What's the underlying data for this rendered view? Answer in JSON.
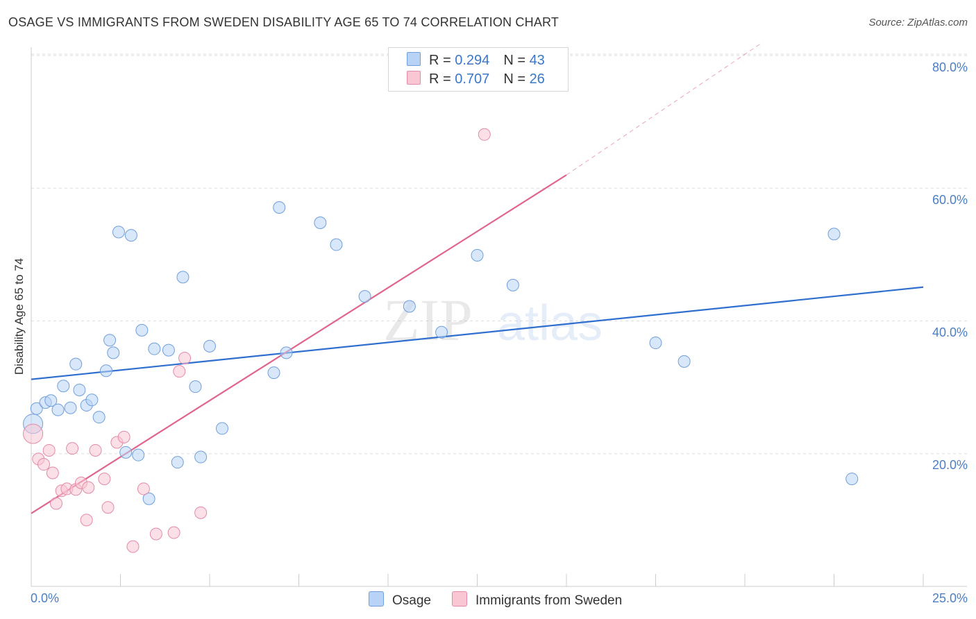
{
  "title": "OSAGE VS IMMIGRANTS FROM SWEDEN DISABILITY AGE 65 TO 74 CORRELATION CHART",
  "source": "Source: ZipAtlas.com",
  "watermark": {
    "zip": "ZIP",
    "atlas": "atlas"
  },
  "legend": {
    "r_label": "R = ",
    "n_label": "N = ",
    "rows": [
      {
        "r": "0.294",
        "n": "43",
        "color": "#b8d3f5",
        "border": "#6f9fdc"
      },
      {
        "r": "0.707",
        "n": "26",
        "color": "#f9c6d4",
        "border": "#e48aa6"
      }
    ]
  },
  "colors": {
    "blue_line": "#2e6fcf",
    "pink_line": "#e0648e",
    "grid": "#dddddd",
    "axis_text": "#4a7fc4"
  },
  "chart_data": {
    "type": "scatter",
    "title": "OSAGE VS IMMIGRANTS FROM SWEDEN DISABILITY AGE 65 TO 74 CORRELATION CHART",
    "xlabel": "",
    "ylabel": "Disability Age 65 to 74",
    "xlim": [
      0,
      25
    ],
    "ylim": [
      0,
      80
    ],
    "x_tick_labels": [
      "0.0%",
      "25.0%"
    ],
    "y_ticks": [
      20,
      40,
      60,
      80
    ],
    "y_tick_labels": [
      "20.0%",
      "40.0%",
      "60.0%",
      "80.0%"
    ],
    "grid": true,
    "legend_position": "top-center",
    "series": [
      {
        "name": "Osage",
        "color": "#b8d3f5",
        "points": [
          [
            0.05,
            24.5
          ],
          [
            0.15,
            26.8
          ],
          [
            0.4,
            27.7
          ],
          [
            0.55,
            28.0
          ],
          [
            0.75,
            26.6
          ],
          [
            0.9,
            30.2
          ],
          [
            1.1,
            26.9
          ],
          [
            1.25,
            33.5
          ],
          [
            1.35,
            29.6
          ],
          [
            1.55,
            27.3
          ],
          [
            1.7,
            28.1
          ],
          [
            1.9,
            25.5
          ],
          [
            2.1,
            32.5
          ],
          [
            2.2,
            37.1
          ],
          [
            2.3,
            35.2
          ],
          [
            2.45,
            53.4
          ],
          [
            2.65,
            20.2
          ],
          [
            2.8,
            52.9
          ],
          [
            3.0,
            19.8
          ],
          [
            3.1,
            38.6
          ],
          [
            3.3,
            13.2
          ],
          [
            3.45,
            35.8
          ],
          [
            3.85,
            35.6
          ],
          [
            4.1,
            18.7
          ],
          [
            4.25,
            46.6
          ],
          [
            4.6,
            30.1
          ],
          [
            4.75,
            19.5
          ],
          [
            5.0,
            36.2
          ],
          [
            5.35,
            23.8
          ],
          [
            6.8,
            32.2
          ],
          [
            6.95,
            57.1
          ],
          [
            7.15,
            35.2
          ],
          [
            8.1,
            54.8
          ],
          [
            8.55,
            51.5
          ],
          [
            9.35,
            43.7
          ],
          [
            10.6,
            42.2
          ],
          [
            11.5,
            38.3
          ],
          [
            12.5,
            49.9
          ],
          [
            13.5,
            45.4
          ],
          [
            17.5,
            36.7
          ],
          [
            18.3,
            33.9
          ],
          [
            22.5,
            53.1
          ],
          [
            23.0,
            16.2
          ]
        ],
        "trend": {
          "x": [
            0,
            25
          ],
          "y": [
            31.2,
            45.1
          ]
        }
      },
      {
        "name": "Immigrants from Sweden",
        "color": "#f9c6d4",
        "points": [
          [
            0.05,
            23.0
          ],
          [
            0.2,
            19.2
          ],
          [
            0.35,
            18.4
          ],
          [
            0.5,
            20.5
          ],
          [
            0.6,
            17.1
          ],
          [
            0.7,
            12.5
          ],
          [
            0.85,
            14.4
          ],
          [
            1.0,
            14.7
          ],
          [
            1.15,
            20.8
          ],
          [
            1.25,
            14.6
          ],
          [
            1.4,
            15.6
          ],
          [
            1.55,
            10.0
          ],
          [
            1.6,
            14.9
          ],
          [
            1.8,
            20.5
          ],
          [
            2.05,
            16.2
          ],
          [
            2.15,
            11.9
          ],
          [
            2.4,
            21.7
          ],
          [
            2.6,
            22.5
          ],
          [
            2.85,
            6.0
          ],
          [
            3.15,
            14.7
          ],
          [
            3.5,
            7.9
          ],
          [
            4.0,
            8.1
          ],
          [
            4.15,
            32.4
          ],
          [
            4.3,
            34.4
          ],
          [
            4.75,
            11.1
          ],
          [
            12.7,
            68.1
          ]
        ],
        "trend": {
          "x": [
            0,
            15
          ],
          "y": [
            11.0,
            62.0
          ],
          "dashed_extension_to": [
            20.5,
            82.0
          ]
        }
      }
    ]
  },
  "bottom_legend": [
    {
      "label": "Osage",
      "color": "#b8d3f5",
      "border": "#6f9fdc"
    },
    {
      "label": "Immigrants from Sweden",
      "color": "#f9c6d4",
      "border": "#e48aa6"
    }
  ]
}
